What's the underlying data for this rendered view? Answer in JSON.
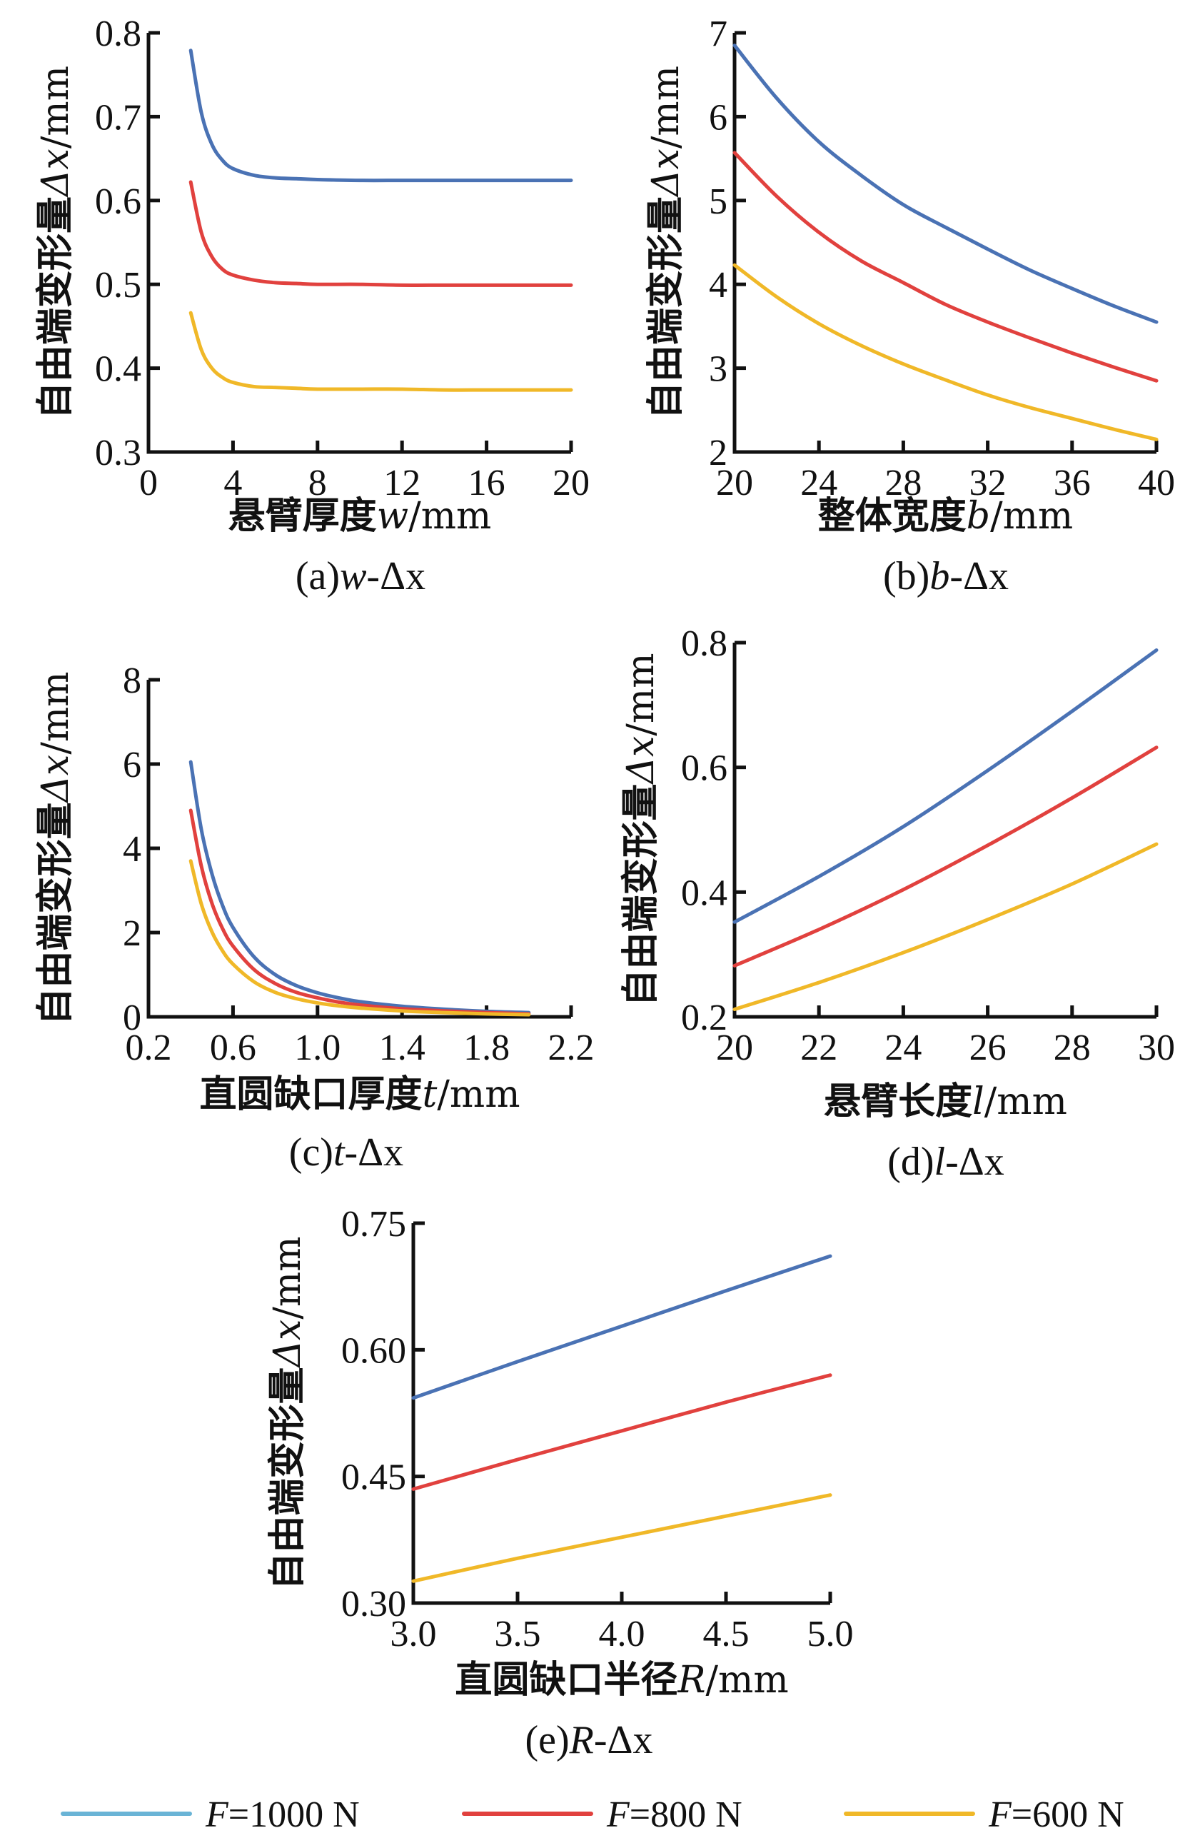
{
  "colors": {
    "F1000": "#4a72b4",
    "F800": "#e1413e",
    "F600": "#f0b828",
    "legend_F1000": "#6ab4d6"
  },
  "legend": {
    "items": [
      {
        "key": "F1000",
        "var": "F",
        "text": "=1000 N",
        "color_key": "legend_F1000"
      },
      {
        "key": "F800",
        "var": "F",
        "text": "=800 N",
        "color_key": "F800"
      },
      {
        "key": "F600",
        "var": "F",
        "text": "=600 N",
        "color_key": "F600"
      }
    ]
  },
  "chart_data": [
    {
      "id": "a",
      "type": "line",
      "caption": {
        "prefix": "(a)",
        "var": "w",
        "suffix": "-Δx"
      },
      "xlabel": {
        "cn": "悬臂厚度",
        "var": "w",
        "unit": "/mm"
      },
      "ylabel": {
        "cn": "自由端变形量",
        "var": "Δx",
        "unit": "/mm"
      },
      "xlim": [
        0,
        20
      ],
      "ylim": [
        0.3,
        0.8
      ],
      "xticks": [
        0,
        4,
        8,
        12,
        16,
        20
      ],
      "xtick_labels": [
        "0",
        "4",
        "8",
        "12",
        "16",
        "20"
      ],
      "yticks": [
        0.3,
        0.4,
        0.5,
        0.6,
        0.7,
        0.8
      ],
      "ytick_labels": [
        "0.3",
        "0.4",
        "0.5",
        "0.6",
        "0.7",
        "0.8"
      ],
      "grid": false,
      "x": [
        2,
        2.5,
        3,
        3.5,
        4,
        5,
        6,
        7,
        8,
        10,
        12,
        14,
        16,
        18,
        20
      ],
      "series": [
        {
          "name": "F=1000 N",
          "color_key": "F1000",
          "values": [
            0.779,
            0.705,
            0.667,
            0.648,
            0.638,
            0.63,
            0.627,
            0.626,
            0.625,
            0.624,
            0.624,
            0.624,
            0.624,
            0.624,
            0.624
          ]
        },
        {
          "name": "F=800 N",
          "color_key": "F800",
          "values": [
            0.622,
            0.562,
            0.533,
            0.518,
            0.511,
            0.505,
            0.502,
            0.501,
            0.5,
            0.5,
            0.499,
            0.499,
            0.499,
            0.499,
            0.499
          ]
        },
        {
          "name": "F=600 N",
          "color_key": "F600",
          "values": [
            0.466,
            0.422,
            0.4,
            0.389,
            0.383,
            0.378,
            0.377,
            0.376,
            0.375,
            0.375,
            0.375,
            0.374,
            0.374,
            0.374,
            0.374
          ]
        }
      ]
    },
    {
      "id": "b",
      "type": "line",
      "caption": {
        "prefix": "(b)",
        "var": "b",
        "suffix": "-Δx"
      },
      "xlabel": {
        "cn": "整体宽度",
        "var": "b",
        "unit": "/mm"
      },
      "ylabel": {
        "cn": "自由端变形量",
        "var": "Δx",
        "unit": "/mm"
      },
      "xlim": [
        20,
        40
      ],
      "ylim": [
        2,
        7
      ],
      "xticks": [
        20,
        24,
        28,
        32,
        36,
        40
      ],
      "xtick_labels": [
        "20",
        "24",
        "28",
        "32",
        "36",
        "40"
      ],
      "yticks": [
        2,
        3,
        4,
        5,
        6,
        7
      ],
      "ytick_labels": [
        "2",
        "3",
        "4",
        "5",
        "6",
        "7"
      ],
      "grid": false,
      "x": [
        20,
        22,
        24,
        26,
        28,
        30,
        32,
        34,
        36,
        38,
        40
      ],
      "series": [
        {
          "name": "F=1000 N",
          "color_key": "F1000",
          "values": [
            6.85,
            6.22,
            5.7,
            5.3,
            4.95,
            4.68,
            4.42,
            4.17,
            3.95,
            3.74,
            3.55
          ]
        },
        {
          "name": "F=800 N",
          "color_key": "F800",
          "values": [
            5.57,
            5.05,
            4.62,
            4.28,
            4.02,
            3.76,
            3.55,
            3.36,
            3.18,
            3.01,
            2.85
          ]
        },
        {
          "name": "F=600 N",
          "color_key": "F600",
          "values": [
            4.23,
            3.85,
            3.53,
            3.27,
            3.05,
            2.86,
            2.68,
            2.53,
            2.4,
            2.27,
            2.15
          ]
        }
      ]
    },
    {
      "id": "c",
      "type": "line",
      "caption": {
        "prefix": "(c)",
        "var": "t",
        "suffix": "-Δx"
      },
      "xlabel": {
        "cn": "直圆缺口厚度",
        "var": "t",
        "unit": "/mm"
      },
      "ylabel": {
        "cn": "自由端变形量",
        "var": "Δx",
        "unit": "/mm"
      },
      "xlim": [
        0.2,
        2.2
      ],
      "ylim": [
        0,
        8
      ],
      "xticks": [
        0.2,
        0.6,
        1.0,
        1.4,
        1.8,
        2.2
      ],
      "xtick_labels": [
        "0.2",
        "0.6",
        "1.0",
        "1.4",
        "1.8",
        "2.2"
      ],
      "yticks": [
        0,
        2,
        4,
        6,
        8
      ],
      "ytick_labels": [
        "0",
        "2",
        "4",
        "6",
        "8"
      ],
      "grid": false,
      "x": [
        0.4,
        0.45,
        0.5,
        0.55,
        0.6,
        0.7,
        0.8,
        0.9,
        1.0,
        1.1,
        1.2,
        1.4,
        1.6,
        1.8,
        2.0
      ],
      "series": [
        {
          "name": "F=1000 N",
          "color_key": "F1000",
          "values": [
            6.05,
            4.45,
            3.4,
            2.65,
            2.12,
            1.42,
            1.0,
            0.74,
            0.57,
            0.45,
            0.36,
            0.25,
            0.18,
            0.13,
            0.1
          ]
        },
        {
          "name": "F=800 N",
          "color_key": "F800",
          "values": [
            4.9,
            3.58,
            2.7,
            2.1,
            1.68,
            1.12,
            0.79,
            0.58,
            0.45,
            0.35,
            0.28,
            0.19,
            0.14,
            0.1,
            0.07
          ]
        },
        {
          "name": "F=600 N",
          "color_key": "F600",
          "values": [
            3.7,
            2.68,
            2.02,
            1.57,
            1.25,
            0.83,
            0.58,
            0.43,
            0.33,
            0.26,
            0.21,
            0.14,
            0.1,
            0.07,
            0.05
          ]
        }
      ]
    },
    {
      "id": "d",
      "type": "line",
      "caption": {
        "prefix": "(d)",
        "var": "l",
        "suffix": "-Δx"
      },
      "xlabel": {
        "cn": "悬臂长度",
        "var": "l",
        "unit": "/mm"
      },
      "ylabel": {
        "cn": "自由端变形量",
        "var": "Δx",
        "unit": "/mm"
      },
      "xlim": [
        20,
        30
      ],
      "ylim": [
        0.2,
        0.8
      ],
      "xticks": [
        20,
        22,
        24,
        26,
        28,
        30
      ],
      "xtick_labels": [
        "20",
        "22",
        "24",
        "26",
        "28",
        "30"
      ],
      "yticks": [
        0.2,
        0.4,
        0.6,
        0.8
      ],
      "ytick_labels": [
        "0.2",
        "0.4",
        "0.6",
        "0.8"
      ],
      "grid": false,
      "x": [
        20,
        22,
        24,
        26,
        28,
        30
      ],
      "series": [
        {
          "name": "F=1000 N",
          "color_key": "F1000",
          "values": [
            0.352,
            0.425,
            0.505,
            0.595,
            0.69,
            0.788
          ]
        },
        {
          "name": "F=800 N",
          "color_key": "F800",
          "values": [
            0.282,
            0.34,
            0.404,
            0.475,
            0.551,
            0.632
          ]
        },
        {
          "name": "F=600 N",
          "color_key": "F600",
          "values": [
            0.212,
            0.255,
            0.303,
            0.356,
            0.413,
            0.477
          ]
        }
      ]
    },
    {
      "id": "e",
      "type": "line",
      "caption": {
        "prefix": "(e)",
        "var": "R",
        "suffix": "-Δx"
      },
      "xlabel": {
        "cn": "直圆缺口半径",
        "var": "R",
        "unit": "/mm"
      },
      "ylabel": {
        "cn": "自由端变形量",
        "var": "Δx",
        "unit": "/mm"
      },
      "xlim": [
        3.0,
        5.0
      ],
      "ylim": [
        0.3,
        0.75
      ],
      "xticks": [
        3.0,
        3.5,
        4.0,
        4.5,
        5.0
      ],
      "xtick_labels": [
        "3.0",
        "3.5",
        "4.0",
        "4.5",
        "5.0"
      ],
      "yticks": [
        0.3,
        0.45,
        0.6,
        0.75
      ],
      "ytick_labels": [
        "0.30",
        "0.45",
        "0.60",
        "0.75"
      ],
      "grid": false,
      "x": [
        3.0,
        3.5,
        4.0,
        4.5,
        5.0
      ],
      "series": [
        {
          "name": "F=1000 N",
          "color_key": "F1000",
          "values": [
            0.543,
            0.586,
            0.628,
            0.67,
            0.711
          ]
        },
        {
          "name": "F=800 N",
          "color_key": "F800",
          "values": [
            0.435,
            0.47,
            0.504,
            0.538,
            0.57
          ]
        },
        {
          "name": "F=600 N",
          "color_key": "F600",
          "values": [
            0.326,
            0.353,
            0.378,
            0.403,
            0.428
          ]
        }
      ]
    }
  ]
}
